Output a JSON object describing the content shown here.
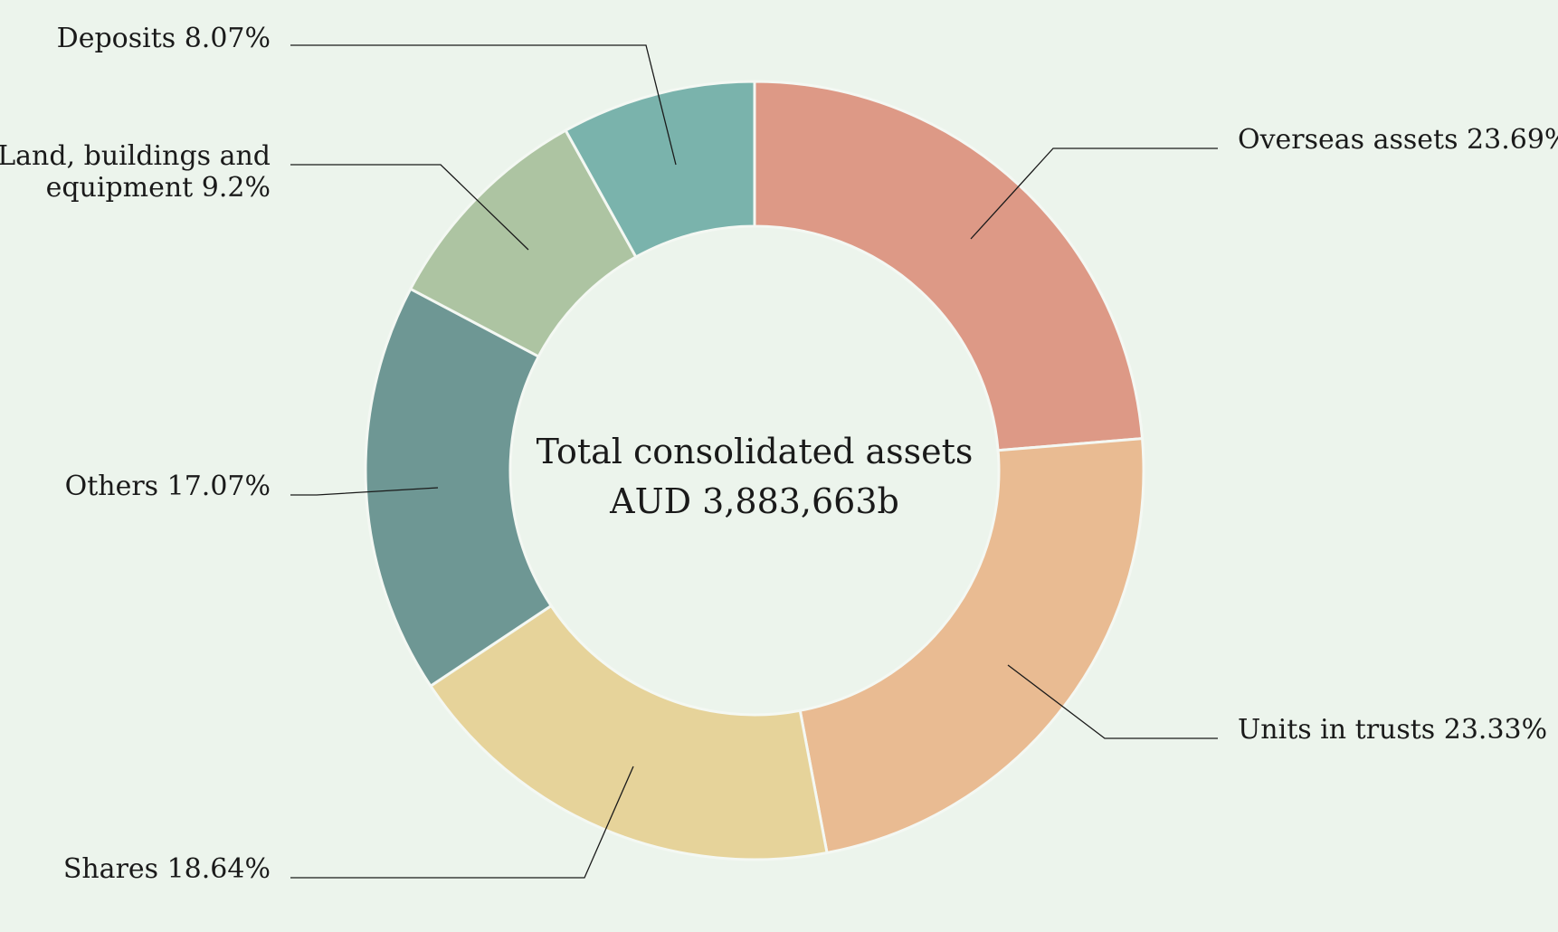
{
  "chart_data": {
    "type": "pie",
    "variant": "donut",
    "title": "Total consolidated assets",
    "subtitle": "AUD 3,883,663b",
    "start_angle_deg": 0,
    "direction": "clockwise",
    "slices": [
      {
        "name": "Overseas assets",
        "value": 23.69,
        "label": "Overseas assets 23.69%",
        "color": "#dd9986"
      },
      {
        "name": "Units in trusts",
        "value": 23.33,
        "label": "Units in trusts 23.33%",
        "color": "#e9bb92"
      },
      {
        "name": "Shares",
        "value": 18.64,
        "label": "Shares 18.64%",
        "color": "#e6d39a"
      },
      {
        "name": "Others",
        "value": 17.07,
        "label": "Others 17.07%",
        "color": "#6e9794"
      },
      {
        "name": "Land, buildings and equipment",
        "value": 9.2,
        "label_lines": [
          "Land, buildings and",
          "equipment 9.2%"
        ],
        "color": "#adc4a2"
      },
      {
        "name": "Deposits",
        "value": 8.07,
        "label": "Deposits 8.07%",
        "color": "#7ab3ac"
      }
    ]
  }
}
